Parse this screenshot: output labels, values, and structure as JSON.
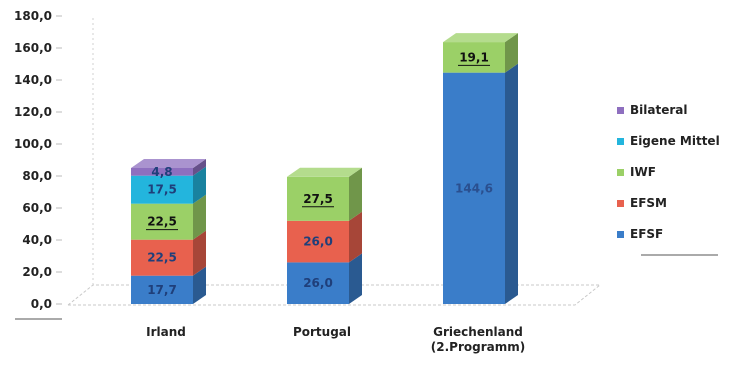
{
  "chart_data": {
    "type": "bar",
    "stacked": true,
    "three_d": true,
    "categories": [
      "Irland",
      "Portugal",
      "Griechenland\n(2.Programm)"
    ],
    "series": [
      {
        "name": "EFSF",
        "color": "#3a7dc9",
        "values": [
          17.7,
          26.0,
          144.6
        ],
        "labels": [
          "17,7",
          "26,0",
          "144,6"
        ]
      },
      {
        "name": "EFSM",
        "color": "#e8614e",
        "values": [
          22.5,
          26.0,
          0
        ],
        "labels": [
          "22,5",
          "26,0",
          ""
        ]
      },
      {
        "name": "IWF",
        "color": "#9bd067",
        "values": [
          22.5,
          27.5,
          19.1
        ],
        "labels": [
          "22,5",
          "27,5",
          "19,1"
        ]
      },
      {
        "name": "Eigene Mittel",
        "color": "#23b5dd",
        "values": [
          17.5,
          0,
          0
        ],
        "labels": [
          "17,5",
          "",
          ""
        ]
      },
      {
        "name": "Bilateral",
        "color": "#8e6fbf",
        "values": [
          4.8,
          0,
          0
        ],
        "labels": [
          "4,8",
          "",
          ""
        ]
      }
    ],
    "ylim": [
      0,
      180
    ],
    "yticks": [
      "0,0",
      "20,0",
      "40,0",
      "60,0",
      "80,0",
      "100,0",
      "120,0",
      "140,0",
      "160,0",
      "180,0"
    ],
    "legend_position": "right",
    "legend_order": [
      "Bilateral",
      "Eigene Mittel",
      "IWF",
      "EFSM",
      "EFSF"
    ]
  }
}
